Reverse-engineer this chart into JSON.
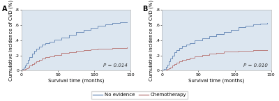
{
  "panel_A": {
    "label": "A",
    "pvalue": "P = 0.014",
    "blue_x": [
      0,
      1,
      3,
      5,
      7,
      9,
      11,
      14,
      17,
      20,
      24,
      28,
      33,
      38,
      45,
      55,
      65,
      75,
      85,
      95,
      105,
      115,
      125,
      135,
      145
    ],
    "blue_y": [
      0.01,
      0.02,
      0.04,
      0.07,
      0.1,
      0.14,
      0.18,
      0.22,
      0.26,
      0.29,
      0.32,
      0.345,
      0.365,
      0.385,
      0.41,
      0.44,
      0.475,
      0.51,
      0.54,
      0.565,
      0.59,
      0.61,
      0.625,
      0.635,
      0.64
    ],
    "red_x": [
      0,
      1,
      3,
      5,
      7,
      9,
      11,
      14,
      17,
      20,
      24,
      28,
      33,
      38,
      45,
      55,
      65,
      75,
      85,
      95,
      105,
      115,
      125,
      135,
      145
    ],
    "red_y": [
      0.005,
      0.01,
      0.015,
      0.02,
      0.03,
      0.045,
      0.065,
      0.085,
      0.105,
      0.125,
      0.145,
      0.16,
      0.175,
      0.19,
      0.21,
      0.23,
      0.245,
      0.26,
      0.27,
      0.28,
      0.285,
      0.29,
      0.295,
      0.3,
      0.305
    ],
    "ylim": [
      0,
      0.8
    ],
    "yticks": [
      0.0,
      0.2,
      0.4,
      0.6,
      0.8
    ],
    "ytick_labels": [
      "0",
      ".2",
      ".4",
      ".6",
      ".8"
    ],
    "xlim": [
      0,
      150
    ],
    "xticks": [
      0,
      50,
      100,
      150
    ]
  },
  "panel_B": {
    "label": "B",
    "pvalue": "P = 0.010",
    "blue_x": [
      0,
      1,
      3,
      5,
      7,
      9,
      11,
      14,
      17,
      20,
      24,
      28,
      33,
      38,
      45,
      55,
      65,
      75,
      85,
      95,
      105,
      115,
      125,
      135,
      145
    ],
    "blue_y": [
      0.005,
      0.01,
      0.025,
      0.05,
      0.08,
      0.12,
      0.16,
      0.2,
      0.24,
      0.27,
      0.3,
      0.325,
      0.345,
      0.365,
      0.395,
      0.425,
      0.455,
      0.485,
      0.51,
      0.535,
      0.57,
      0.595,
      0.61,
      0.62,
      0.625
    ],
    "red_x": [
      0,
      1,
      3,
      5,
      7,
      9,
      11,
      14,
      17,
      20,
      24,
      28,
      33,
      38,
      45,
      55,
      65,
      75,
      85,
      95,
      105,
      115,
      125,
      135,
      145
    ],
    "red_y": [
      0.002,
      0.005,
      0.008,
      0.012,
      0.018,
      0.028,
      0.045,
      0.065,
      0.085,
      0.105,
      0.125,
      0.14,
      0.155,
      0.17,
      0.19,
      0.21,
      0.225,
      0.238,
      0.248,
      0.255,
      0.26,
      0.265,
      0.268,
      0.27,
      0.272
    ],
    "ylim": [
      0,
      0.8
    ],
    "yticks": [
      0.0,
      0.2,
      0.4,
      0.6,
      0.8
    ],
    "ytick_labels": [
      "0",
      ".2",
      ".4",
      ".6",
      ".8"
    ],
    "xlim": [
      0,
      150
    ],
    "xticks": [
      0,
      50,
      100,
      150
    ]
  },
  "blue_color": "#7090bb",
  "red_color": "#bb8080",
  "bg_color": "#dce6f0",
  "ylabel": "Cumulative Incidence of CVD (%)",
  "xlabel": "Survival time (months)",
  "legend_labels": [
    "No evidence",
    "Chemotherapy"
  ],
  "axis_fontsize": 5.0,
  "tick_fontsize": 4.5,
  "legend_fontsize": 5.0,
  "panel_label_fontsize": 7
}
